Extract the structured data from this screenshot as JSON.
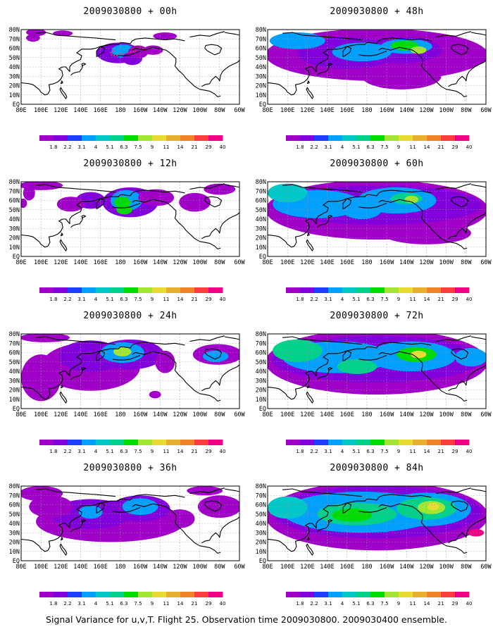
{
  "footer": "Signal Variance for u,v,T. Flight 25. Observation time 2009030800. 2009030400 ensemble.",
  "chart_data": {
    "type": "heatmap",
    "lat_ticks": [
      "80N",
      "70N",
      "60N",
      "50N",
      "40N",
      "30N",
      "20N",
      "10N",
      "EQ"
    ],
    "lon_ticks": [
      "80E",
      "100E",
      "120E",
      "140E",
      "160E",
      "180",
      "160W",
      "140W",
      "120W",
      "100W",
      "80W",
      "60W"
    ],
    "lat_range": [
      0,
      80
    ],
    "lon_range": [
      80,
      300
    ],
    "grid": true,
    "colorbar": {
      "levels": [
        "1.8",
        "2.2",
        "3.1",
        "4",
        "5.1",
        "6.3",
        "7.5",
        "9",
        "11",
        "14",
        "21",
        "29",
        "40"
      ],
      "colors": [
        "#a000c8",
        "#8200dc",
        "#1e3cff",
        "#00a0ff",
        "#00c8c8",
        "#00d28c",
        "#00dc00",
        "#a0e632",
        "#e6dc32",
        "#e6af2d",
        "#f08228",
        "#fa3c3c",
        "#f00082"
      ]
    },
    "panels": [
      {
        "title": "2009030800 + 00h",
        "lead_hours": 0,
        "blobs": [
          {
            "lon": 178,
            "lat": 55,
            "rx": 22,
            "ry": 11,
            "level": 1
          },
          {
            "lon": 183,
            "lat": 57,
            "rx": 12,
            "ry": 7,
            "level": 3
          },
          {
            "lon": 192,
            "lat": 49,
            "rx": 10,
            "ry": 7,
            "level": 1
          },
          {
            "lon": 198,
            "lat": 56,
            "rx": 10,
            "ry": 7,
            "level": 0
          },
          {
            "lon": 95,
            "lat": 77,
            "rx": 10,
            "ry": 4,
            "level": 0
          },
          {
            "lon": 92,
            "lat": 71,
            "rx": 7,
            "ry": 4,
            "level": 0
          },
          {
            "lon": 225,
            "lat": 73,
            "rx": 12,
            "ry": 4,
            "level": 0
          },
          {
            "lon": 213,
            "lat": 58,
            "rx": 10,
            "ry": 5,
            "level": 0
          },
          {
            "lon": 122,
            "lat": 76,
            "rx": 10,
            "ry": 3,
            "level": 0
          }
        ]
      },
      {
        "title": "2009030800 + 12h",
        "lead_hours": 12,
        "blobs": [
          {
            "lon": 190,
            "lat": 58,
            "rx": 28,
            "ry": 16,
            "level": 1
          },
          {
            "lon": 186,
            "lat": 60,
            "rx": 16,
            "ry": 11,
            "level": 3
          },
          {
            "lon": 182,
            "lat": 58,
            "rx": 8,
            "ry": 6,
            "level": 6
          },
          {
            "lon": 184,
            "lat": 50,
            "rx": 8,
            "ry": 5,
            "level": 6
          },
          {
            "lon": 150,
            "lat": 60,
            "rx": 15,
            "ry": 9,
            "level": 1
          },
          {
            "lon": 130,
            "lat": 56,
            "rx": 14,
            "ry": 8,
            "level": 0
          },
          {
            "lon": 216,
            "lat": 63,
            "rx": 18,
            "ry": 9,
            "level": 0
          },
          {
            "lon": 100,
            "lat": 76,
            "rx": 22,
            "ry": 5,
            "level": 0
          },
          {
            "lon": 88,
            "lat": 68,
            "rx": 6,
            "ry": 8,
            "level": 0
          },
          {
            "lon": 255,
            "lat": 58,
            "rx": 16,
            "ry": 10,
            "level": 0
          },
          {
            "lon": 280,
            "lat": 72,
            "rx": 16,
            "ry": 6,
            "level": 0
          },
          {
            "lon": 82,
            "lat": 57,
            "rx": 4,
            "ry": 5,
            "level": 0
          }
        ]
      },
      {
        "title": "2009030800 + 24h",
        "lead_hours": 24,
        "blobs": [
          {
            "lon": 150,
            "lat": 45,
            "rx": 50,
            "ry": 26,
            "level": 0
          },
          {
            "lon": 150,
            "lat": 56,
            "rx": 32,
            "ry": 17,
            "level": 1
          },
          {
            "lon": 190,
            "lat": 58,
            "rx": 34,
            "ry": 16,
            "level": 1
          },
          {
            "lon": 182,
            "lat": 60,
            "rx": 22,
            "ry": 11,
            "level": 3
          },
          {
            "lon": 182,
            "lat": 61,
            "rx": 9,
            "ry": 5,
            "level": 7
          },
          {
            "lon": 278,
            "lat": 58,
            "rx": 25,
            "ry": 11,
            "level": 0
          },
          {
            "lon": 276,
            "lat": 56,
            "rx": 13,
            "ry": 6,
            "level": 3
          },
          {
            "lon": 100,
            "lat": 33,
            "rx": 20,
            "ry": 25,
            "level": 0
          },
          {
            "lon": 104,
            "lat": 76,
            "rx": 25,
            "ry": 5,
            "level": 0
          },
          {
            "lon": 215,
            "lat": 15,
            "rx": 6,
            "ry": 4,
            "level": 0
          },
          {
            "lon": 225,
            "lat": 50,
            "rx": 10,
            "ry": 12,
            "level": 0
          }
        ]
      },
      {
        "title": "2009030800 + 36h",
        "lead_hours": 36,
        "blobs": [
          {
            "lon": 170,
            "lat": 42,
            "rx": 75,
            "ry": 22,
            "level": 0
          },
          {
            "lon": 150,
            "lat": 50,
            "rx": 40,
            "ry": 16,
            "level": 1
          },
          {
            "lon": 200,
            "lat": 56,
            "rx": 30,
            "ry": 14,
            "level": 1
          },
          {
            "lon": 200,
            "lat": 58,
            "rx": 18,
            "ry": 9,
            "level": 3
          },
          {
            "lon": 150,
            "lat": 52,
            "rx": 12,
            "ry": 7,
            "level": 3
          },
          {
            "lon": 110,
            "lat": 58,
            "rx": 22,
            "ry": 12,
            "level": 0
          },
          {
            "lon": 100,
            "lat": 72,
            "rx": 22,
            "ry": 8,
            "level": 0
          },
          {
            "lon": 280,
            "lat": 58,
            "rx": 22,
            "ry": 12,
            "level": 0
          },
          {
            "lon": 265,
            "lat": 75,
            "rx": 18,
            "ry": 5,
            "level": 0
          },
          {
            "lon": 240,
            "lat": 45,
            "rx": 15,
            "ry": 10,
            "level": 0
          }
        ]
      },
      {
        "title": "2009030800 + 48h",
        "lead_hours": 48,
        "blobs": [
          {
            "lon": 190,
            "lat": 53,
            "rx": 112,
            "ry": 28,
            "level": 0
          },
          {
            "lon": 215,
            "lat": 30,
            "rx": 40,
            "ry": 14,
            "level": 0
          },
          {
            "lon": 160,
            "lat": 55,
            "rx": 50,
            "ry": 17,
            "level": 1
          },
          {
            "lon": 215,
            "lat": 58,
            "rx": 40,
            "ry": 14,
            "level": 1
          },
          {
            "lon": 175,
            "lat": 56,
            "rx": 30,
            "ry": 10,
            "level": 3
          },
          {
            "lon": 220,
            "lat": 62,
            "rx": 26,
            "ry": 8,
            "level": 3
          },
          {
            "lon": 218,
            "lat": 63,
            "rx": 14,
            "ry": 5,
            "level": 6
          },
          {
            "lon": 110,
            "lat": 68,
            "rx": 28,
            "ry": 9,
            "level": 3
          },
          {
            "lon": 232,
            "lat": 58,
            "rx": 8,
            "ry": 4,
            "level": 7
          }
        ]
      },
      {
        "title": "2009030800 + 60h",
        "lead_hours": 60,
        "blobs": [
          {
            "lon": 190,
            "lat": 50,
            "rx": 112,
            "ry": 32,
            "level": 0
          },
          {
            "lon": 240,
            "lat": 25,
            "rx": 45,
            "ry": 12,
            "level": 0
          },
          {
            "lon": 190,
            "lat": 55,
            "rx": 106,
            "ry": 21,
            "level": 1
          },
          {
            "lon": 130,
            "lat": 56,
            "rx": 45,
            "ry": 15,
            "level": 3
          },
          {
            "lon": 210,
            "lat": 60,
            "rx": 40,
            "ry": 14,
            "level": 3
          },
          {
            "lon": 100,
            "lat": 68,
            "rx": 20,
            "ry": 10,
            "level": 4
          },
          {
            "lon": 175,
            "lat": 50,
            "rx": 20,
            "ry": 10,
            "level": 3
          },
          {
            "lon": 220,
            "lat": 62,
            "rx": 16,
            "ry": 6,
            "level": 5
          },
          {
            "lon": 225,
            "lat": 61,
            "rx": 7,
            "ry": 4,
            "level": 7
          }
        ]
      },
      {
        "title": "2009030800 + 72h",
        "lead_hours": 72,
        "blobs": [
          {
            "lon": 190,
            "lat": 50,
            "rx": 112,
            "ry": 35,
            "level": 0
          },
          {
            "lon": 190,
            "lat": 53,
            "rx": 106,
            "ry": 25,
            "level": 1
          },
          {
            "lon": 150,
            "lat": 55,
            "rx": 55,
            "ry": 17,
            "level": 3
          },
          {
            "lon": 225,
            "lat": 56,
            "rx": 45,
            "ry": 16,
            "level": 3
          },
          {
            "lon": 110,
            "lat": 62,
            "rx": 25,
            "ry": 12,
            "level": 5
          },
          {
            "lon": 230,
            "lat": 58,
            "rx": 20,
            "ry": 8,
            "level": 6
          },
          {
            "lon": 232,
            "lat": 58,
            "rx": 8,
            "ry": 4,
            "level": 8
          },
          {
            "lon": 170,
            "lat": 45,
            "rx": 20,
            "ry": 8,
            "level": 5
          },
          {
            "lon": 285,
            "lat": 55,
            "rx": 16,
            "ry": 10,
            "level": 3
          }
        ]
      },
      {
        "title": "2009030800 + 84h",
        "lead_hours": 84,
        "blobs": [
          {
            "lon": 190,
            "lat": 48,
            "rx": 112,
            "ry": 37,
            "level": 0
          },
          {
            "lon": 190,
            "lat": 52,
            "rx": 106,
            "ry": 28,
            "level": 1
          },
          {
            "lon": 175,
            "lat": 52,
            "rx": 80,
            "ry": 22,
            "level": 3
          },
          {
            "lon": 240,
            "lat": 55,
            "rx": 45,
            "ry": 18,
            "level": 3
          },
          {
            "lon": 170,
            "lat": 50,
            "rx": 40,
            "ry": 12,
            "level": 5
          },
          {
            "lon": 240,
            "lat": 56,
            "rx": 30,
            "ry": 12,
            "level": 5
          },
          {
            "lon": 165,
            "lat": 49,
            "rx": 20,
            "ry": 7,
            "level": 6
          },
          {
            "lon": 245,
            "lat": 57,
            "rx": 14,
            "ry": 7,
            "level": 7
          },
          {
            "lon": 247,
            "lat": 58,
            "rx": 6,
            "ry": 4,
            "level": 8
          },
          {
            "lon": 100,
            "lat": 57,
            "rx": 20,
            "ry": 12,
            "level": 4
          },
          {
            "lon": 290,
            "lat": 30,
            "rx": 8,
            "ry": 4,
            "level": 12
          }
        ]
      }
    ]
  }
}
